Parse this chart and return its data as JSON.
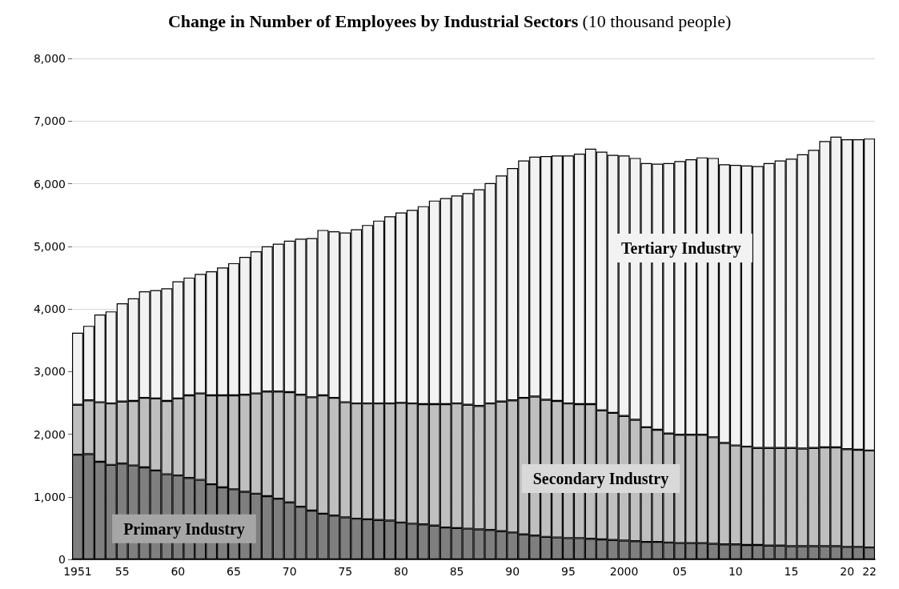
{
  "chart_data": {
    "type": "bar",
    "stacked": true,
    "title": "Change in Number of Employees by Industrial Sectors",
    "ylabel": "(10 thousand people)",
    "categories": [
      "1951",
      null,
      null,
      null,
      "55",
      null,
      null,
      null,
      null,
      "60",
      null,
      null,
      null,
      null,
      "65",
      null,
      null,
      null,
      null,
      "70",
      null,
      null,
      null,
      null,
      "75",
      null,
      null,
      null,
      null,
      "80",
      null,
      null,
      null,
      null,
      "85",
      null,
      null,
      null,
      null,
      "90",
      null,
      null,
      null,
      null,
      "95",
      null,
      null,
      null,
      null,
      "2000",
      null,
      null,
      null,
      null,
      "05",
      null,
      null,
      null,
      null,
      "10",
      null,
      null,
      null,
      null,
      "15",
      null,
      null,
      null,
      null,
      "20",
      null,
      "22"
    ],
    "series": [
      {
        "name": "Primary Industry",
        "color": "#7f7f7f",
        "values": [
          1670,
          1680,
          1560,
          1510,
          1530,
          1500,
          1470,
          1420,
          1360,
          1340,
          1300,
          1270,
          1200,
          1150,
          1120,
          1080,
          1050,
          1010,
          970,
          910,
          840,
          780,
          730,
          700,
          670,
          650,
          640,
          630,
          620,
          590,
          570,
          560,
          540,
          510,
          500,
          490,
          480,
          470,
          450,
          430,
          400,
          380,
          360,
          350,
          340,
          340,
          330,
          320,
          310,
          300,
          290,
          280,
          280,
          270,
          260,
          260,
          260,
          250,
          240,
          240,
          230,
          230,
          220,
          220,
          210,
          210,
          210,
          210,
          210,
          200,
          200,
          190
        ]
      },
      {
        "name": "Secondary Industry",
        "color": "#bfbfbf",
        "values": [
          800,
          860,
          950,
          980,
          990,
          1030,
          1110,
          1150,
          1170,
          1230,
          1320,
          1380,
          1420,
          1470,
          1500,
          1550,
          1600,
          1670,
          1710,
          1760,
          1790,
          1810,
          1890,
          1880,
          1840,
          1840,
          1850,
          1860,
          1870,
          1910,
          1920,
          1920,
          1940,
          1970,
          1990,
          1980,
          1970,
          2020,
          2070,
          2110,
          2180,
          2220,
          2190,
          2180,
          2150,
          2140,
          2150,
          2060,
          2030,
          1990,
          1940,
          1830,
          1790,
          1740,
          1730,
          1730,
          1730,
          1700,
          1620,
          1580,
          1570,
          1550,
          1560,
          1560,
          1570,
          1560,
          1570,
          1580,
          1580,
          1560,
          1550,
          1550
        ]
      },
      {
        "name": "Tertiary Industry",
        "color": "#f2f2f2",
        "values": [
          1150,
          1190,
          1400,
          1470,
          1570,
          1640,
          1700,
          1730,
          1800,
          1870,
          1880,
          1910,
          1980,
          2040,
          2110,
          2200,
          2270,
          2320,
          2360,
          2420,
          2490,
          2540,
          2640,
          2660,
          2710,
          2780,
          2850,
          2920,
          2990,
          3040,
          3090,
          3160,
          3250,
          3290,
          3320,
          3380,
          3460,
          3520,
          3610,
          3710,
          3790,
          3830,
          3890,
          3920,
          3960,
          4000,
          4080,
          4130,
          4120,
          4160,
          4180,
          4220,
          4250,
          4320,
          4370,
          4400,
          4430,
          4460,
          4450,
          4480,
          4490,
          4500,
          4550,
          4590,
          4620,
          4700,
          4760,
          4890,
          4960,
          4950,
          4960,
          4980
        ]
      }
    ],
    "ylim": [
      0,
      8000
    ],
    "yticks": [
      0,
      {
        "value": 1000,
        "label": "1,000"
      },
      {
        "value": 2000,
        "label": "2,000"
      },
      {
        "value": 3000,
        "label": "3,000"
      },
      {
        "value": 4000,
        "label": "4,000"
      },
      {
        "value": 5000,
        "label": "5,000"
      },
      {
        "value": 6000,
        "label": "6,000"
      },
      {
        "value": 7000,
        "label": "7,000"
      },
      {
        "value": 8000,
        "label": "8,000"
      }
    ],
    "grid": "y",
    "legend": false
  }
}
